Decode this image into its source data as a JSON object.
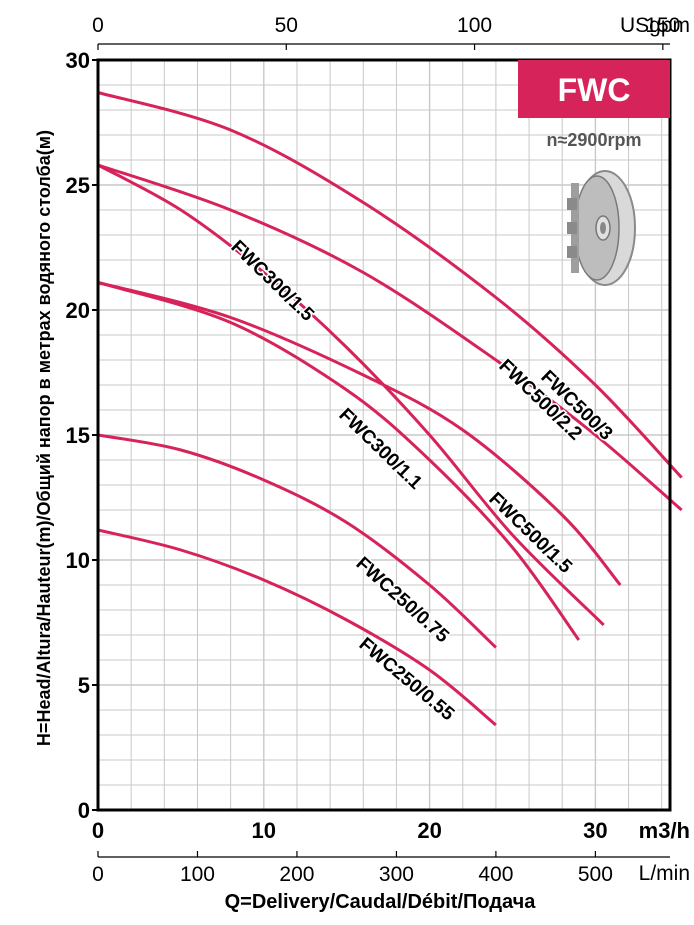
{
  "chart_data": {
    "type": "line",
    "title": "FWC",
    "subtitle": "n≈2900rpm",
    "xlabel": "Q=Delivery/Caudal/Débit/Подача",
    "ylabel": "H=Head/Altura/Hauteur(m)/Общий напор в метрах водяного столба(м)",
    "x_unit": "m3/h",
    "xlim": [
      0,
      34.5
    ],
    "ylim": [
      0,
      30
    ],
    "grid": true,
    "x_ticks": [
      "0",
      "10",
      "20",
      "30"
    ],
    "y_ticks": [
      "0",
      "5",
      "10",
      "15",
      "20",
      "25",
      "30"
    ],
    "secondary_axes": {
      "lmin": {
        "unit": "L/min",
        "ticks": [
          "0",
          "100",
          "200",
          "300",
          "400",
          "500"
        ]
      },
      "usgpm": {
        "unit": "USgpm",
        "ticks": [
          "0",
          "50",
          "100",
          "150"
        ]
      }
    },
    "series": [
      {
        "name": "FWC500/3",
        "x": [
          0,
          8,
          16,
          24,
          30,
          35.2
        ],
        "y": [
          28.7,
          27.2,
          24.3,
          20.5,
          17.0,
          13.3
        ]
      },
      {
        "name": "FWC500/2.2",
        "x": [
          0,
          8,
          16,
          24,
          30,
          35.2
        ],
        "y": [
          25.8,
          24.0,
          21.5,
          18.0,
          15.0,
          12.0
        ]
      },
      {
        "name": "FWC300/1.5",
        "x": [
          0,
          5,
          10,
          15,
          20,
          25,
          30.5
        ],
        "y": [
          25.8,
          24.0,
          21.5,
          18.5,
          15.0,
          11.0,
          7.4
        ]
      },
      {
        "name": "FWC500/1.5",
        "x": [
          0,
          8,
          16,
          22,
          28,
          31.5
        ],
        "y": [
          21.1,
          19.7,
          17.4,
          15.2,
          11.8,
          9.0
        ]
      },
      {
        "name": "FWC300/1.1",
        "x": [
          0,
          8,
          15,
          20,
          25,
          29.0
        ],
        "y": [
          21.1,
          19.5,
          16.8,
          14.0,
          10.5,
          6.8
        ]
      },
      {
        "name": "FWC250/0.75",
        "x": [
          0,
          5,
          10,
          15,
          20,
          24.0
        ],
        "y": [
          15.0,
          14.4,
          13.2,
          11.5,
          9.0,
          6.5
        ]
      },
      {
        "name": "FWC250/0.55",
        "x": [
          0,
          5,
          10,
          15,
          20,
          24.0
        ],
        "y": [
          11.2,
          10.4,
          9.2,
          7.6,
          5.6,
          3.4
        ]
      }
    ]
  },
  "colors": {
    "curve": "#D6245A",
    "badge_bg": "#D6245A",
    "badge_text": "#ffffff",
    "grid": "#c8c8c8",
    "axis": "#000000"
  },
  "icons": [
    "impeller-icon"
  ]
}
